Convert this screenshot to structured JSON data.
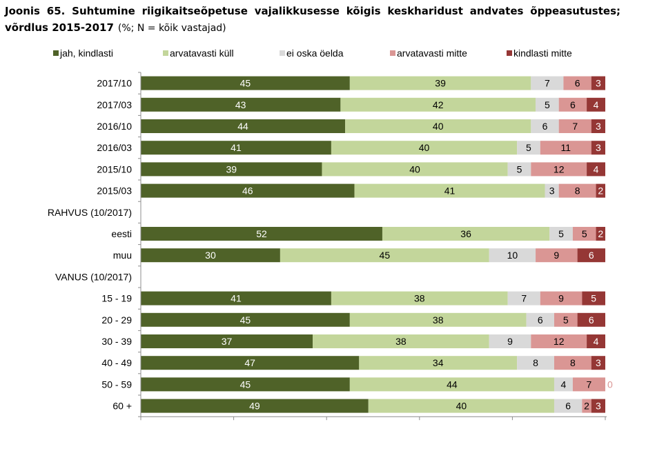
{
  "title": {
    "main": "Joonis 65. Suhtumine riigikaitseõpetuse vajalikkusesse kõigis keskharidust andvates õppeasutustes; võrdlus 2015-2017",
    "subtitle": "(%; N = kõik vastajad)"
  },
  "chart_data": {
    "type": "bar",
    "orientation": "horizontal",
    "stacked": true,
    "title": "Joonis 65. Suhtumine riigikaitseõpetuse vajalikkusesse kõigis keskharidust andvates õppeasutustes; võrdlus 2015-2017",
    "subtitle": "(%; N = kõik vastajad)",
    "xlabel": "",
    "ylabel": "",
    "xlim": [
      0,
      100
    ],
    "x_tick_labels_visible": false,
    "grid": false,
    "legend_position": "top",
    "legend": [
      {
        "name": "jah, kindlasti",
        "color": "#4f6228"
      },
      {
        "name": "arvatavasti küll",
        "color": "#c3d69b"
      },
      {
        "name": "ei oska öelda",
        "color": "#d9d9d9"
      },
      {
        "name": "arvatavasti mitte",
        "color": "#da9694"
      },
      {
        "name": "kindlasti mitte",
        "color": "#953735"
      }
    ],
    "label_colors": [
      "#ffffff",
      "#000000",
      "#000000",
      "#000000",
      "#ffffff"
    ],
    "categories": [
      "2017/10",
      "2017/03",
      "2016/10",
      "2016/03",
      "2015/10",
      "2015/03",
      "RAHVUS (10/2017)",
      "eesti",
      "muu",
      "VANUS (10/2017)",
      "15 - 19",
      "20 - 29",
      "30 - 39",
      "40 - 49",
      "50 - 59",
      "60 +"
    ],
    "series": [
      {
        "name": "jah, kindlasti",
        "values": [
          45,
          43,
          44,
          41,
          39,
          46,
          null,
          52,
          30,
          null,
          41,
          45,
          37,
          47,
          45,
          49
        ]
      },
      {
        "name": "arvatavasti küll",
        "values": [
          39,
          42,
          40,
          40,
          40,
          41,
          null,
          36,
          45,
          null,
          38,
          38,
          38,
          34,
          44,
          40
        ]
      },
      {
        "name": "ei oska öelda",
        "values": [
          7,
          5,
          6,
          5,
          5,
          3,
          null,
          5,
          10,
          null,
          7,
          6,
          9,
          8,
          4,
          6
        ]
      },
      {
        "name": "arvatavasti mitte",
        "values": [
          6,
          6,
          7,
          11,
          12,
          8,
          null,
          5,
          9,
          null,
          9,
          5,
          12,
          8,
          7,
          2
        ]
      },
      {
        "name": "kindlasti mitte",
        "values": [
          3,
          4,
          3,
          3,
          4,
          2,
          null,
          2,
          6,
          null,
          5,
          6,
          4,
          3,
          0,
          3
        ]
      }
    ]
  }
}
